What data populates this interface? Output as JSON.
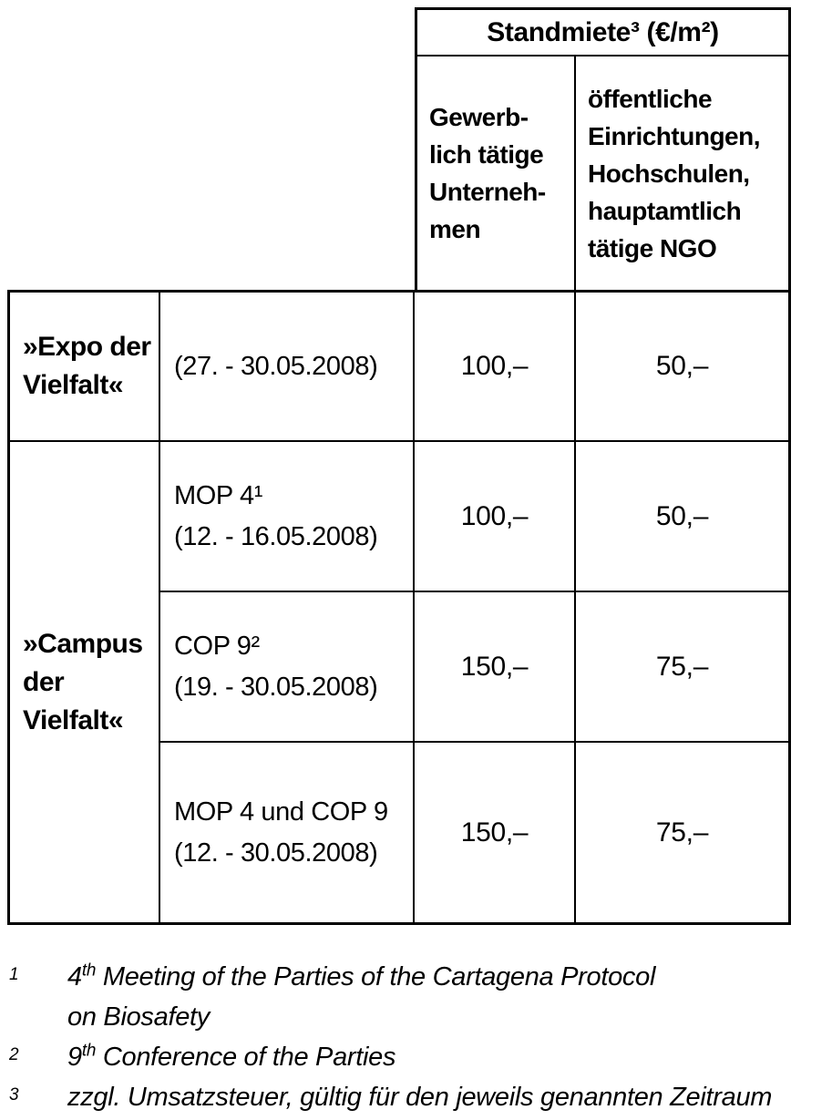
{
  "page": {
    "background_color": "#ffffff",
    "text_color": "#000000",
    "border_color": "#000000"
  },
  "table": {
    "header": {
      "title": "Standmiete³ (€/m²)",
      "col_commercial_lines": [
        "Gewerb-",
        "lich tätige",
        "Unterneh-",
        "men"
      ],
      "col_public_lines": [
        "öffentliche",
        "Einrichtungen,",
        "Hochschulen,",
        "hauptamtlich",
        "tätige NGO"
      ]
    },
    "row_groups": [
      {
        "label_lines": [
          "»Expo der",
          "Vielfalt«"
        ],
        "rows": [
          {
            "event_lines": [
              "(27. - 30.05.2008)",
              ""
            ],
            "commercial": "100,–",
            "public": "50,–"
          }
        ]
      },
      {
        "label_lines": [
          "»Campus",
          "der",
          "Vielfalt«"
        ],
        "rows": [
          {
            "event_lines": [
              "MOP 4¹",
              "(12. - 16.05.2008)"
            ],
            "commercial": "100,–",
            "public": "50,–"
          },
          {
            "event_lines": [
              "COP 9²",
              "(19. - 30.05.2008)"
            ],
            "commercial": "150,–",
            "public": "75,–"
          },
          {
            "event_lines": [
              "MOP 4 und COP 9",
              "(12. - 30.05.2008)"
            ],
            "commercial": "150,–",
            "public": "75,–"
          }
        ]
      }
    ]
  },
  "footnotes": [
    {
      "marker": "1",
      "base": "4",
      "sup": "th",
      "rest": " Meeting of the Parties of the Cartagena Protocol",
      "line2": "on Biosafety"
    },
    {
      "marker": "2",
      "base": "9",
      "sup": "th",
      "rest": " Conference of the Parties",
      "line2": ""
    },
    {
      "marker": "3",
      "base": "",
      "sup": "",
      "rest": "zzgl. Umsatzsteuer, gültig für den jeweils genannten Zeitraum",
      "line2": ""
    }
  ]
}
